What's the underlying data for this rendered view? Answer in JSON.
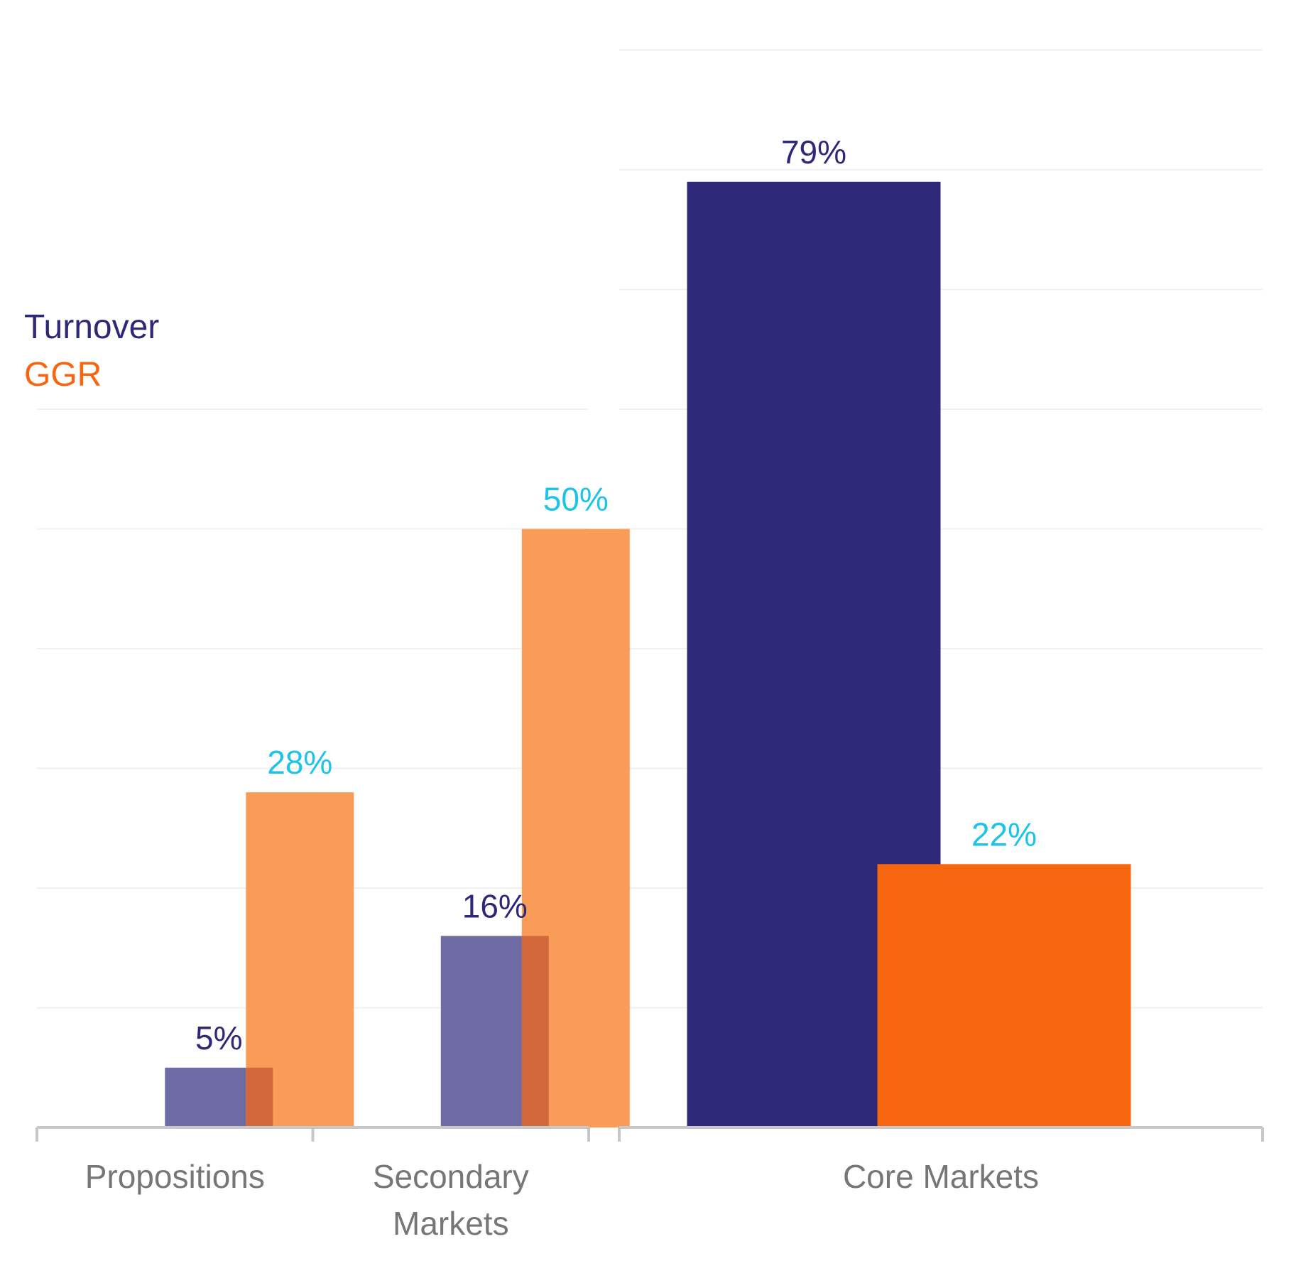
{
  "colors": {
    "turnover": "#2e2879",
    "turnover_faded": "#6e6aa4",
    "ggr": "#f8650f",
    "ggr_faded": "#f89c58",
    "overlap": "#d2683c",
    "ggr_label": "#1ec3e8",
    "axis_text": "#767676",
    "axis_line": "#c8c8c8",
    "grid": "#f0f0f0"
  },
  "legend": {
    "turnover": "Turnover",
    "ggr": "GGR"
  },
  "chart_data": [
    {
      "type": "bar",
      "categories": [
        "Propositions",
        "Secondary Markets"
      ],
      "category_lines": [
        [
          "Propositions"
        ],
        [
          "Secondary",
          "Markets"
        ]
      ],
      "series": [
        {
          "name": "Turnover",
          "values": [
            5,
            16
          ],
          "labels": [
            "5%",
            "16%"
          ]
        },
        {
          "name": "GGR",
          "values": [
            28,
            50
          ],
          "labels": [
            "28%",
            "50%"
          ]
        }
      ],
      "ylim": [
        0,
        80
      ],
      "grid": true,
      "legend_position": "top-left"
    },
    {
      "type": "bar",
      "categories": [
        "Core Markets"
      ],
      "category_lines": [
        [
          "Core Markets"
        ]
      ],
      "series": [
        {
          "name": "Turnover",
          "values": [
            79
          ],
          "labels": [
            "79%"
          ]
        },
        {
          "name": "GGR",
          "values": [
            22
          ],
          "labels": [
            "22%"
          ]
        }
      ],
      "ylim": [
        0,
        80
      ],
      "grid": true
    }
  ]
}
